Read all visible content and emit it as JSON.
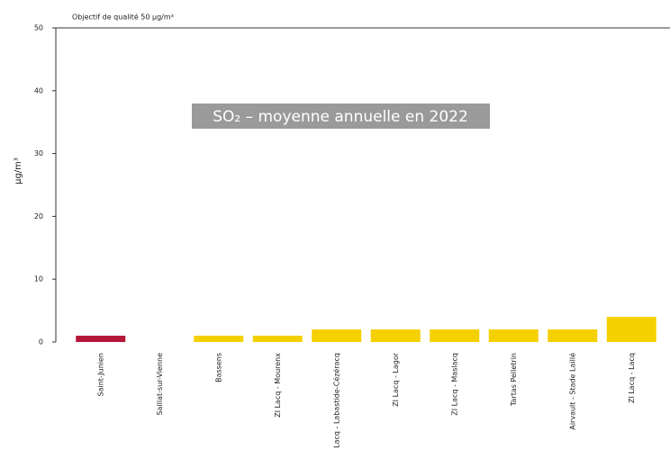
{
  "chart_data": {
    "type": "bar",
    "annotation": "Objectif de qualité 50 µg/m³",
    "overlay_title": "SO₂ – moyenne annuelle en 2022",
    "y_label": "µg/m³",
    "categories": [
      "Saint-Junien",
      "Saillat-sur-Vienne",
      "Bassens",
      "ZI Lacq - Mourenx",
      "ZI Lacq - Labastide-Cézéracq",
      "ZI Lacq - Lagor",
      "ZI Lacq - Maslacq",
      "Tartas Pelletrin",
      "Airvault - Stade Laillé",
      "ZI Lacq - Lacq"
    ],
    "values": [
      1,
      0,
      1,
      1,
      2,
      2,
      2,
      2,
      2,
      4
    ],
    "colors": [
      "#b5173a",
      "#f5d000",
      "#f5d000",
      "#f5d000",
      "#f5d000",
      "#f5d000",
      "#f5d000",
      "#f5d000",
      "#f5d000",
      "#f5d000"
    ],
    "ylim": [
      0,
      50
    ],
    "yticks": [
      0,
      10,
      20,
      30,
      40,
      50
    ],
    "threshold": 50
  }
}
